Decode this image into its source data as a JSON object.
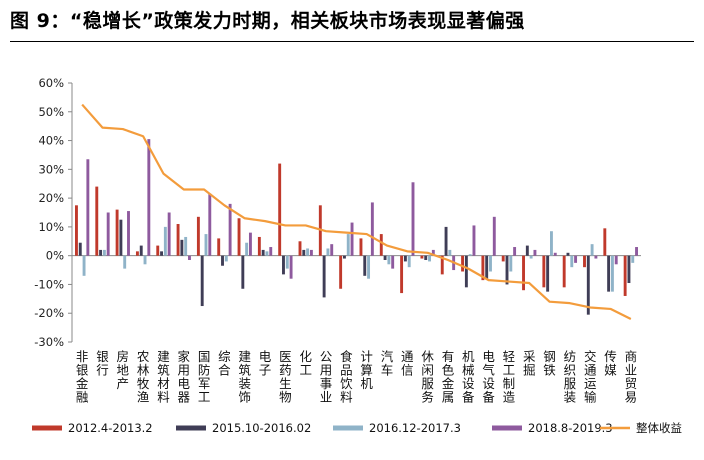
{
  "title": "图 9：“稳增长”政策发力时期，相关板块市场表现显著偏强",
  "chart_data": {
    "type": "bar",
    "title": "图 9：“稳增长”政策发力时期，相关板块市场表现显著偏强",
    "xlabel": "",
    "ylabel": "",
    "ylim": [
      -30,
      60
    ],
    "yticks": [
      -30,
      -20,
      -10,
      0,
      10,
      20,
      30,
      40,
      50,
      60
    ],
    "ytick_labels": [
      "-30%",
      "-20%",
      "-10%",
      "0%",
      "10%",
      "20%",
      "30%",
      "40%",
      "50%",
      "60%"
    ],
    "grid": false,
    "legend_position": "bottom",
    "categories": [
      "非银金融",
      "银行",
      "房地产",
      "农林牧渔",
      "建筑材料",
      "家用电器",
      "国防军工",
      "综合",
      "建筑装饰",
      "电子",
      "医药生物",
      "化工",
      "公用事业",
      "食品饮料",
      "计算机",
      "汽车",
      "通信",
      "休闲服务",
      "有色金属",
      "机械设备",
      "电气设备",
      "轻工制造",
      "采掘",
      "钢铁",
      "纺织服装",
      "交通运输",
      "传媒",
      "商业贸易"
    ],
    "series": [
      {
        "name": "2012.4-2013.2",
        "type": "bar",
        "color": "#C0392B",
        "values": [
          17.5,
          24,
          16,
          1.5,
          3.5,
          11,
          13.5,
          6,
          13,
          6.5,
          32,
          5,
          17.5,
          -11.5,
          6,
          7.5,
          -13,
          -1,
          -6.5,
          -5.5,
          -8.5,
          -2,
          -12,
          -11,
          -11,
          -4,
          9.5,
          -14
        ]
      },
      {
        "name": "2015.10-2016.02",
        "type": "bar",
        "color": "#3F3D56",
        "values": [
          4.5,
          2,
          12.5,
          3.5,
          1.5,
          5.5,
          -17.5,
          -3.5,
          -11.5,
          2,
          -6.5,
          2,
          -14.5,
          -1,
          -7,
          -1.5,
          -2,
          -1.5,
          10,
          -11,
          -8,
          -10,
          3.5,
          -12.5,
          1,
          -20.5,
          -12.5,
          -9.5
        ]
      },
      {
        "name": "2016.12-2017.3",
        "type": "bar",
        "color": "#8FB3C8",
        "values": [
          -7,
          2,
          -4.5,
          -3,
          10,
          6.5,
          7.5,
          -2,
          4.5,
          1.5,
          -4.5,
          2.5,
          2.5,
          7.5,
          -8,
          -3,
          -4,
          -2,
          2,
          0.5,
          -5.5,
          -5.5,
          -1,
          8.5,
          -4,
          4,
          -12.5,
          -2.5
        ]
      },
      {
        "name": "2018.8-2019.3",
        "type": "bar",
        "color": "#8E5A9E",
        "values": [
          33.5,
          15,
          15.5,
          40.5,
          15,
          -1.5,
          21.5,
          18,
          8,
          3,
          -8,
          2,
          4,
          11.5,
          18.5,
          -4.5,
          25.5,
          2,
          -5,
          10.5,
          13.5,
          3,
          2,
          1,
          -2.5,
          -1,
          -3,
          3
        ]
      },
      {
        "name": "整体收益",
        "type": "line",
        "color": "#F39C3C",
        "values": [
          52.5,
          44.5,
          44,
          41.5,
          28.5,
          23,
          23,
          17.5,
          13,
          12,
          10.5,
          10.5,
          8.5,
          8,
          7.5,
          3.5,
          1.5,
          1,
          -1.5,
          -4.5,
          -8.5,
          -9,
          -9.5,
          -16,
          -16.5,
          -18,
          -18.5,
          -22
        ]
      }
    ]
  }
}
